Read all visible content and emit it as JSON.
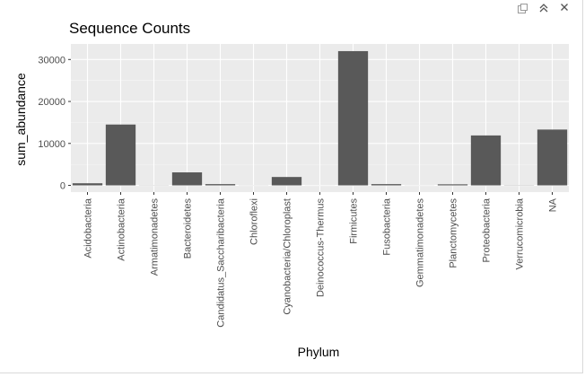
{
  "window": {
    "controls": [
      {
        "name": "popout-icon"
      },
      {
        "name": "collapse-icon"
      },
      {
        "name": "close-icon"
      }
    ]
  },
  "chart_data": {
    "type": "bar",
    "title": "Sequence Counts",
    "xlabel": "Phylum",
    "ylabel": "sum_abundance",
    "categories": [
      "Acidobacteria",
      "Actinobacteria",
      "Armatimonadetes",
      "Bacteroidetes",
      "Candidatus_Saccharibacteria",
      "Chloroflexi",
      "Cyanobacteria/Chloroplast",
      "Deinococcus-Thermus",
      "Firmicutes",
      "Fusobacteria",
      "Gemmatimonadetes",
      "Planctomycetes",
      "Proteobacteria",
      "Verrucomicrobia",
      "NA"
    ],
    "values": [
      500,
      14500,
      30,
      3100,
      300,
      20,
      2000,
      10,
      32000,
      300,
      15,
      250,
      11900,
      40,
      13300
    ],
    "yticks": [
      0,
      10000,
      20000,
      30000
    ],
    "ylim": [
      -1600,
      33700
    ],
    "grid": true,
    "colors": {
      "bar": "#595959",
      "panel": "#ebebeb",
      "grid_major": "#ffffff",
      "grid_minor": "#f5f5f5",
      "tick": "#333333"
    }
  }
}
